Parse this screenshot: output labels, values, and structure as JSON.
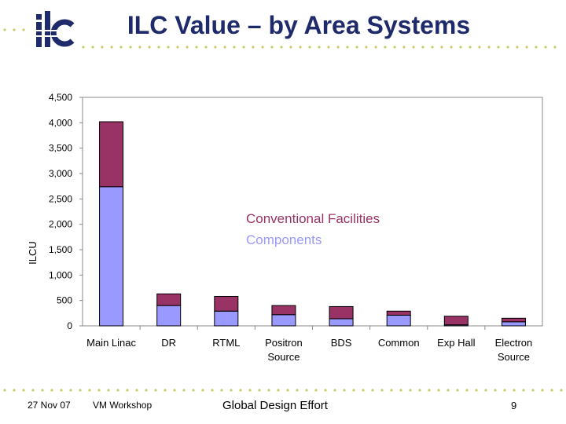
{
  "slide": {
    "title": "ILC Value – by Area Systems",
    "logo_text": "ilc"
  },
  "footer": {
    "date": "27 Nov 07",
    "event": "VM Workshop",
    "center": "Global Design Effort",
    "page": "9"
  },
  "colors": {
    "title": "#1f2a6a",
    "accent_dots": "#c8cc6a",
    "conventional_facilities": "#993366",
    "components": "#9999ff"
  },
  "chart_data": {
    "type": "bar",
    "stacked": true,
    "categories": [
      "Main Linac",
      "DR",
      "RTML",
      "Positron Source",
      "BDS",
      "Common",
      "Exp Hall",
      "Electron Source"
    ],
    "series": [
      {
        "name": "Components",
        "color": "#9999ff",
        "values": [
          2740,
          400,
          290,
          220,
          140,
          210,
          20,
          80
        ]
      },
      {
        "name": "Conventional Facilities",
        "color": "#993366",
        "values": [
          1280,
          230,
          290,
          180,
          240,
          80,
          170,
          70
        ]
      }
    ],
    "ylabel": "ILCU",
    "ylim": [
      0,
      4500
    ],
    "yticks": [
      0,
      500,
      1000,
      1500,
      2000,
      2500,
      3000,
      3500,
      4000,
      4500
    ],
    "ytick_labels": [
      "0",
      "500",
      "1,000",
      "1,500",
      "2,000",
      "2,500",
      "3,000",
      "3,500",
      "4,000",
      "4,500"
    ],
    "legend_placement": "center-right",
    "grid": false
  }
}
